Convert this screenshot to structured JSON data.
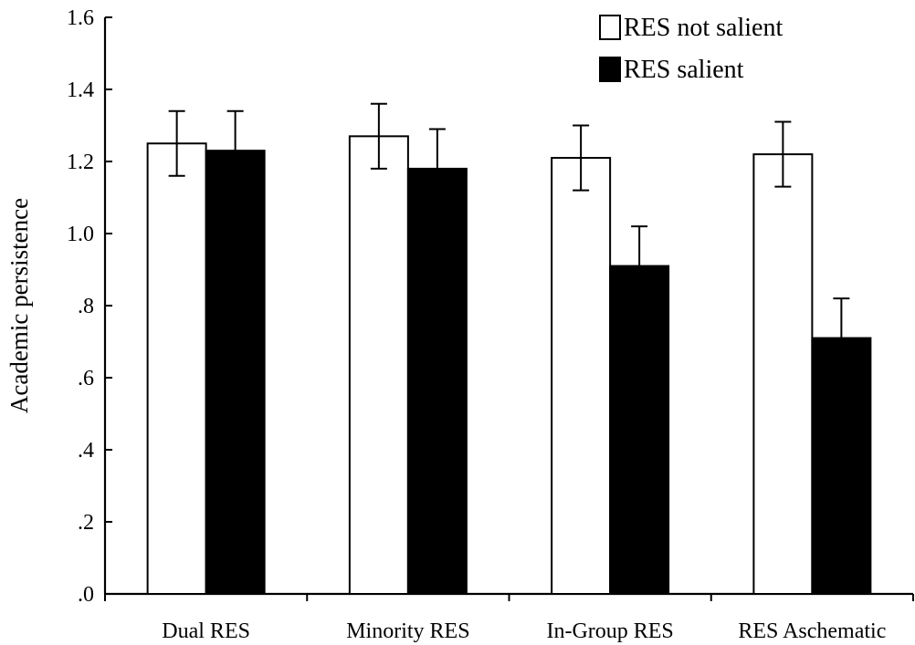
{
  "chart_data": {
    "type": "bar",
    "title": "",
    "xlabel": "",
    "ylabel": "Academic persistence",
    "ylim": [
      0,
      1.6
    ],
    "yticks": [
      {
        "value": 0.0,
        "label": ".0"
      },
      {
        "value": 0.2,
        "label": ".2"
      },
      {
        "value": 0.4,
        "label": ".4"
      },
      {
        "value": 0.6,
        "label": ".6"
      },
      {
        "value": 0.8,
        "label": ".8"
      },
      {
        "value": 1.0,
        "label": "1.0"
      },
      {
        "value": 1.2,
        "label": "1.2"
      },
      {
        "value": 1.4,
        "label": "1.4"
      },
      {
        "value": 1.6,
        "label": "1.6"
      }
    ],
    "categories": [
      "Dual RES",
      "Minority RES",
      "In-Group RES",
      "RES Aschematic"
    ],
    "series": [
      {
        "name": "RES not salient",
        "color": "#ffffff",
        "values": [
          1.25,
          1.27,
          1.21,
          1.22
        ],
        "errors": [
          0.09,
          0.09,
          0.09,
          0.09
        ]
      },
      {
        "name": "RES salient",
        "color": "#000000",
        "values": [
          1.23,
          1.18,
          0.91,
          0.71
        ],
        "errors": [
          0.11,
          0.11,
          0.11,
          0.11
        ]
      }
    ],
    "legend_position": "top-right",
    "grid": false
  }
}
